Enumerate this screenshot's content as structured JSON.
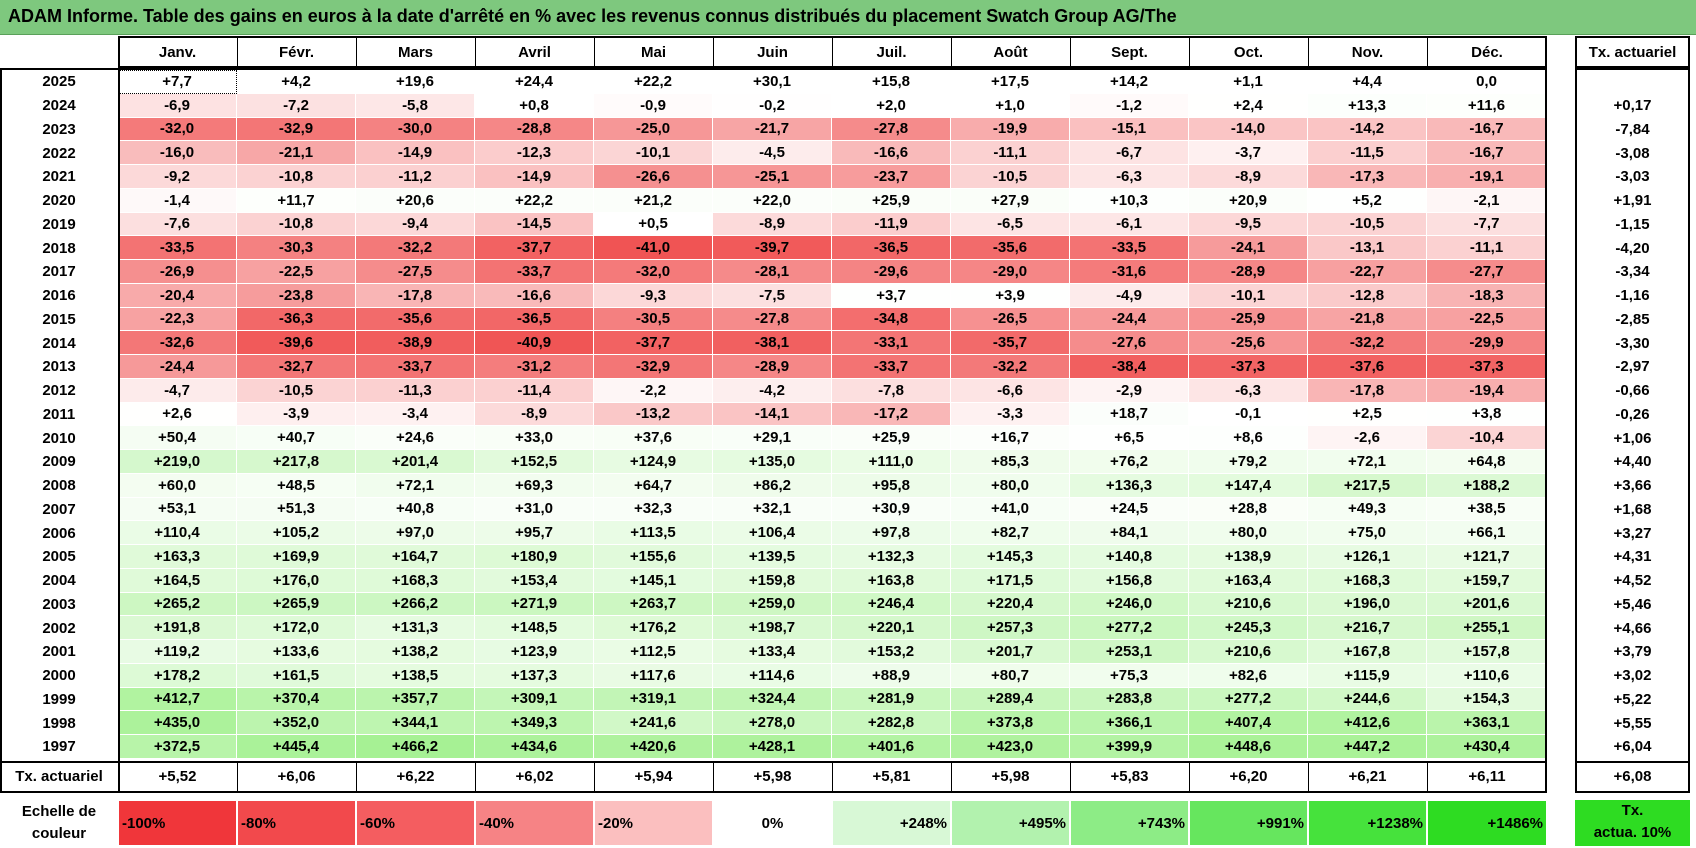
{
  "title": "ADAM Informe. Table des gains en euros à la date d'arrêté en % avec les revenus connus distribués du placement Swatch Group AG/The",
  "columns": [
    "Janv.",
    "Févr.",
    "Mars",
    "Avril",
    "Mai",
    "Juin",
    "Juil.",
    "Août",
    "Sept.",
    "Oct.",
    "Nov.",
    "Déc."
  ],
  "rate_header": "Tx. actuariel",
  "rows": [
    {
      "year": "2025",
      "values": [
        "+7,7",
        "+4,2",
        "+19,6",
        "+24,4",
        "+22,2",
        "+30,1",
        "+15,8",
        "+17,5",
        "+14,2",
        "+1,1",
        "+4,4",
        "0,0"
      ],
      "rate": ""
    },
    {
      "year": "2024",
      "values": [
        "-6,9",
        "-7,2",
        "-5,8",
        "+0,8",
        "-0,9",
        "-0,2",
        "+2,0",
        "+1,0",
        "-1,2",
        "+2,4",
        "+13,3",
        "+11,6"
      ],
      "rate": "+0,17"
    },
    {
      "year": "2023",
      "values": [
        "-32,0",
        "-32,9",
        "-30,0",
        "-28,8",
        "-25,0",
        "-21,7",
        "-27,8",
        "-19,9",
        "-15,1",
        "-14,0",
        "-14,2",
        "-16,7"
      ],
      "rate": "-7,84"
    },
    {
      "year": "2022",
      "values": [
        "-16,0",
        "-21,1",
        "-14,9",
        "-12,3",
        "-10,1",
        "-4,5",
        "-16,6",
        "-11,1",
        "-6,7",
        "-3,7",
        "-11,5",
        "-16,7"
      ],
      "rate": "-3,08"
    },
    {
      "year": "2021",
      "values": [
        "-9,2",
        "-10,8",
        "-11,2",
        "-14,9",
        "-26,6",
        "-25,1",
        "-23,7",
        "-10,5",
        "-6,3",
        "-8,9",
        "-17,3",
        "-19,1"
      ],
      "rate": "-3,03"
    },
    {
      "year": "2020",
      "values": [
        "-1,4",
        "+11,7",
        "+20,6",
        "+22,2",
        "+21,2",
        "+22,0",
        "+25,9",
        "+27,9",
        "+10,3",
        "+20,9",
        "+5,2",
        "-2,1"
      ],
      "rate": "+1,91"
    },
    {
      "year": "2019",
      "values": [
        "-7,6",
        "-10,8",
        "-9,4",
        "-14,5",
        "+0,5",
        "-8,9",
        "-11,9",
        "-6,5",
        "-6,1",
        "-9,5",
        "-10,5",
        "-7,7"
      ],
      "rate": "-1,15"
    },
    {
      "year": "2018",
      "values": [
        "-33,5",
        "-30,3",
        "-32,2",
        "-37,7",
        "-41,0",
        "-39,7",
        "-36,5",
        "-35,6",
        "-33,5",
        "-24,1",
        "-13,1",
        "-11,1"
      ],
      "rate": "-4,20"
    },
    {
      "year": "2017",
      "values": [
        "-26,9",
        "-22,5",
        "-27,5",
        "-33,7",
        "-32,0",
        "-28,1",
        "-29,6",
        "-29,0",
        "-31,6",
        "-28,9",
        "-22,7",
        "-27,7"
      ],
      "rate": "-3,34"
    },
    {
      "year": "2016",
      "values": [
        "-20,4",
        "-23,8",
        "-17,8",
        "-16,6",
        "-9,3",
        "-7,5",
        "+3,7",
        "+3,9",
        "-4,9",
        "-10,1",
        "-12,8",
        "-18,3"
      ],
      "rate": "-1,16"
    },
    {
      "year": "2015",
      "values": [
        "-22,3",
        "-36,3",
        "-35,6",
        "-36,5",
        "-30,5",
        "-27,8",
        "-34,8",
        "-26,5",
        "-24,4",
        "-25,9",
        "-21,8",
        "-22,5"
      ],
      "rate": "-2,85"
    },
    {
      "year": "2014",
      "values": [
        "-32,6",
        "-39,6",
        "-38,9",
        "-40,9",
        "-37,7",
        "-38,1",
        "-33,1",
        "-35,7",
        "-27,6",
        "-25,6",
        "-32,2",
        "-29,9"
      ],
      "rate": "-3,30"
    },
    {
      "year": "2013",
      "values": [
        "-24,4",
        "-32,7",
        "-33,7",
        "-31,2",
        "-32,9",
        "-28,9",
        "-33,7",
        "-32,2",
        "-38,4",
        "-37,3",
        "-37,6",
        "-37,3"
      ],
      "rate": "-2,97"
    },
    {
      "year": "2012",
      "values": [
        "-4,7",
        "-10,5",
        "-11,3",
        "-11,4",
        "-2,2",
        "-4,2",
        "-7,8",
        "-6,6",
        "-2,9",
        "-6,3",
        "-17,8",
        "-19,4"
      ],
      "rate": "-0,66"
    },
    {
      "year": "2011",
      "values": [
        "+2,6",
        "-3,9",
        "-3,4",
        "-8,9",
        "-13,2",
        "-14,1",
        "-17,2",
        "-3,3",
        "+18,7",
        "-0,1",
        "+2,5",
        "+3,8"
      ],
      "rate": "-0,26"
    },
    {
      "year": "2010",
      "values": [
        "+50,4",
        "+40,7",
        "+24,6",
        "+33,0",
        "+37,6",
        "+29,1",
        "+25,9",
        "+16,7",
        "+6,5",
        "+8,6",
        "-2,6",
        "-10,4"
      ],
      "rate": "+1,06"
    },
    {
      "year": "2009",
      "values": [
        "+219,0",
        "+217,8",
        "+201,4",
        "+152,5",
        "+124,9",
        "+135,0",
        "+111,0",
        "+85,3",
        "+76,2",
        "+79,2",
        "+72,1",
        "+64,8"
      ],
      "rate": "+4,40"
    },
    {
      "year": "2008",
      "values": [
        "+60,0",
        "+48,5",
        "+72,1",
        "+69,3",
        "+64,7",
        "+86,2",
        "+95,8",
        "+80,0",
        "+136,3",
        "+147,4",
        "+217,5",
        "+188,2"
      ],
      "rate": "+3,66"
    },
    {
      "year": "2007",
      "values": [
        "+53,1",
        "+51,3",
        "+40,8",
        "+31,0",
        "+32,3",
        "+32,1",
        "+30,9",
        "+41,0",
        "+24,5",
        "+28,8",
        "+49,3",
        "+38,5"
      ],
      "rate": "+1,68"
    },
    {
      "year": "2006",
      "values": [
        "+110,4",
        "+105,2",
        "+97,0",
        "+95,7",
        "+113,5",
        "+106,4",
        "+97,8",
        "+82,7",
        "+84,1",
        "+80,0",
        "+75,0",
        "+66,1"
      ],
      "rate": "+3,27"
    },
    {
      "year": "2005",
      "values": [
        "+163,3",
        "+169,9",
        "+164,7",
        "+180,9",
        "+155,6",
        "+139,5",
        "+132,3",
        "+145,3",
        "+140,8",
        "+138,9",
        "+126,1",
        "+121,7"
      ],
      "rate": "+4,31"
    },
    {
      "year": "2004",
      "values": [
        "+164,5",
        "+176,0",
        "+168,3",
        "+153,4",
        "+145,1",
        "+159,8",
        "+163,8",
        "+171,5",
        "+156,8",
        "+163,4",
        "+168,3",
        "+159,7"
      ],
      "rate": "+4,52"
    },
    {
      "year": "2003",
      "values": [
        "+265,2",
        "+265,9",
        "+266,2",
        "+271,9",
        "+263,7",
        "+259,0",
        "+246,4",
        "+220,4",
        "+246,0",
        "+210,6",
        "+196,0",
        "+201,6"
      ],
      "rate": "+5,46"
    },
    {
      "year": "2002",
      "values": [
        "+191,8",
        "+172,0",
        "+131,3",
        "+148,5",
        "+176,2",
        "+198,7",
        "+220,1",
        "+257,3",
        "+277,2",
        "+245,3",
        "+216,7",
        "+255,1"
      ],
      "rate": "+4,66"
    },
    {
      "year": "2001",
      "values": [
        "+119,2",
        "+133,6",
        "+138,2",
        "+123,9",
        "+112,5",
        "+133,4",
        "+153,2",
        "+201,7",
        "+253,1",
        "+210,6",
        "+167,8",
        "+157,8"
      ],
      "rate": "+3,79"
    },
    {
      "year": "2000",
      "values": [
        "+178,2",
        "+161,5",
        "+138,5",
        "+137,3",
        "+117,6",
        "+114,6",
        "+88,9",
        "+80,7",
        "+75,3",
        "+82,6",
        "+115,9",
        "+110,6"
      ],
      "rate": "+3,02"
    },
    {
      "year": "1999",
      "values": [
        "+412,7",
        "+370,4",
        "+357,7",
        "+309,1",
        "+319,1",
        "+324,4",
        "+281,9",
        "+289,4",
        "+283,8",
        "+277,2",
        "+244,6",
        "+154,3"
      ],
      "rate": "+5,22"
    },
    {
      "year": "1998",
      "values": [
        "+435,0",
        "+352,0",
        "+344,1",
        "+349,3",
        "+241,6",
        "+278,0",
        "+282,8",
        "+373,8",
        "+366,1",
        "+407,4",
        "+412,6",
        "+363,1"
      ],
      "rate": "+5,55"
    },
    {
      "year": "1997",
      "values": [
        "+372,5",
        "+445,4",
        "+466,2",
        "+434,6",
        "+420,6",
        "+428,1",
        "+401,6",
        "+423,0",
        "+399,9",
        "+448,6",
        "+447,2",
        "+430,4"
      ],
      "rate": "+6,04"
    }
  ],
  "footer": {
    "label": "Tx. actuariel",
    "values": [
      "+5,52",
      "+6,06",
      "+6,22",
      "+6,02",
      "+5,94",
      "+5,98",
      "+5,81",
      "+5,98",
      "+5,83",
      "+6,20",
      "+6,21",
      "+6,11"
    ],
    "rate": "+6,08"
  },
  "legend": {
    "label_line1": "Echelle de",
    "label_line2": "couleur",
    "items": [
      {
        "text": "-100%",
        "color": "#f0363a"
      },
      {
        "text": "-80%",
        "color": "#f2494c"
      },
      {
        "text": "-60%",
        "color": "#f45d60"
      },
      {
        "text": "-40%",
        "color": "#f68385"
      },
      {
        "text": "-20%",
        "color": "#fbbfbf"
      },
      {
        "text": "0%",
        "color": "#ffffff"
      },
      {
        "text": "+248%",
        "color": "#d8f8d6"
      },
      {
        "text": "+495%",
        "color": "#b2f2ae"
      },
      {
        "text": "+743%",
        "color": "#8dec86"
      },
      {
        "text": "+991%",
        "color": "#66e65e"
      },
      {
        "text": "+1238%",
        "color": "#46e23c"
      },
      {
        "text": "+1486%",
        "color": "#2edc22"
      }
    ],
    "rate_box_line1": "Tx.",
    "rate_box_line2": "actua. 10%",
    "rate_box_color": "#2edc22"
  }
}
